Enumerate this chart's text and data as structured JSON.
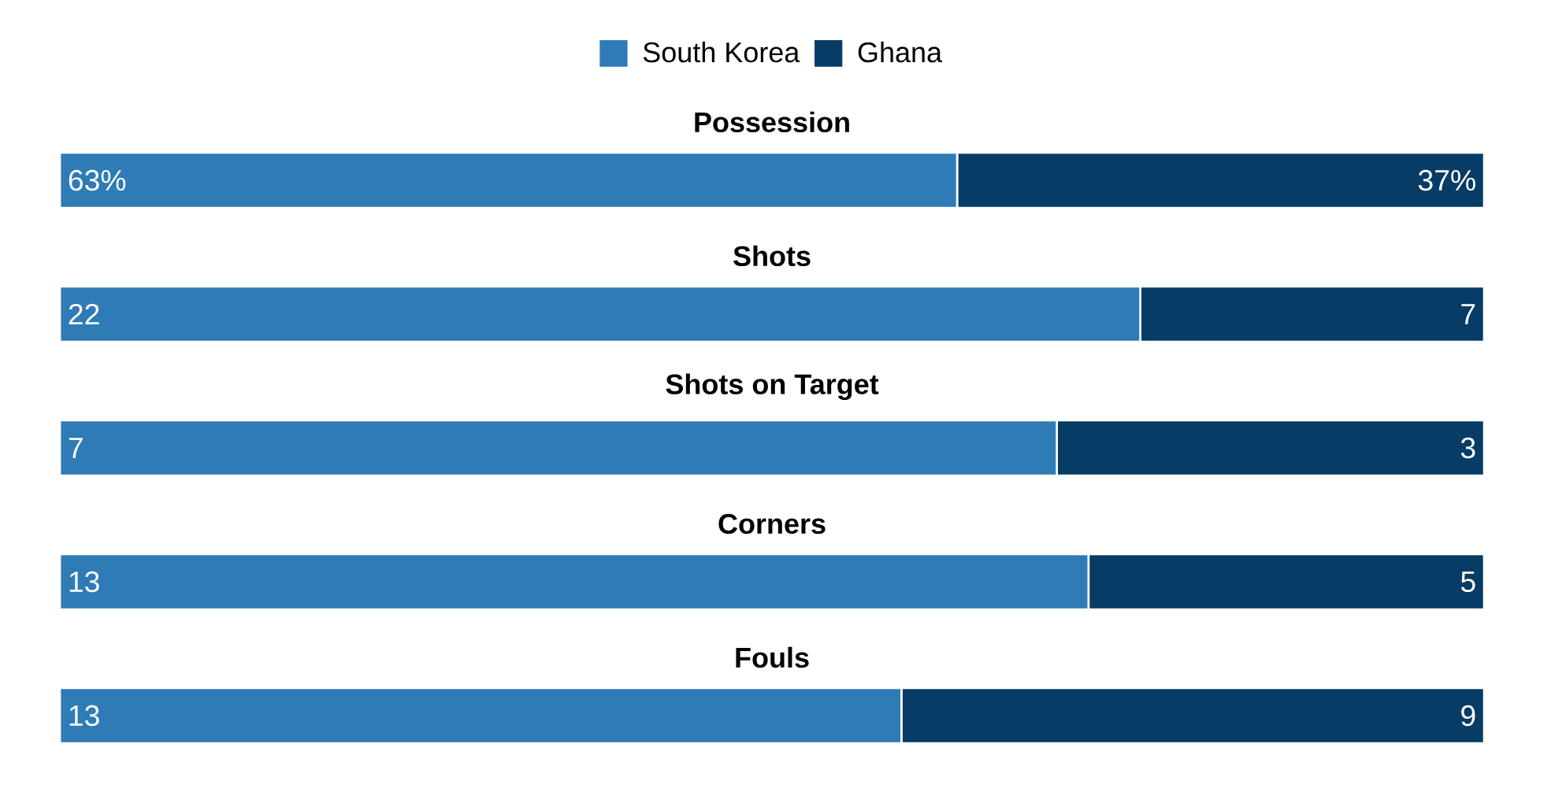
{
  "chart_data": [
    {
      "type": "bar",
      "orientation": "horizontal",
      "stacked": true,
      "title": "Possession",
      "categories": [
        null
      ],
      "tick_labels": false,
      "legend": "top",
      "series": [
        {
          "name": "South Korea",
          "color": "#2e7bb6",
          "values": [
            63
          ],
          "value_labels": [
            "63%"
          ]
        },
        {
          "name": "Ghana",
          "color": "#063c66",
          "values": [
            37
          ],
          "value_labels": [
            "37%"
          ]
        }
      ]
    },
    {
      "type": "bar",
      "orientation": "horizontal",
      "stacked": true,
      "title": "Shots",
      "categories": [
        null
      ],
      "tick_labels": false,
      "data_labels": true,
      "series": [
        {
          "color": "#2e7bb6",
          "values": [
            22
          ]
        },
        {
          "color": "#063c66",
          "values": [
            7
          ]
        }
      ]
    },
    {
      "type": "bar",
      "orientation": "horizontal",
      "stacked": true,
      "title": "Shots on Target",
      "categories": [
        null
      ],
      "tick_labels": false,
      "data_labels": true,
      "series": [
        {
          "color": "#2e7bb6",
          "values": [
            7
          ]
        },
        {
          "color": "#063c66",
          "values": [
            3
          ]
        }
      ]
    },
    {
      "type": "bar",
      "orientation": "horizontal",
      "stacked": true,
      "title": "Corners",
      "categories": [
        null
      ],
      "tick_labels": false,
      "data_labels": true,
      "series": [
        {
          "color": "#2e7bb6",
          "values": [
            13
          ]
        },
        {
          "color": "#063c66",
          "values": [
            5
          ]
        }
      ]
    },
    {
      "type": "bar",
      "orientation": "horizontal",
      "stacked": true,
      "title": "Fouls",
      "categories": [
        null
      ],
      "tick_labels": false,
      "data_labels": true,
      "series": [
        {
          "color": "#2e7bb6",
          "values": [
            13
          ]
        },
        {
          "color": "#063c66",
          "values": [
            9
          ]
        }
      ]
    }
  ]
}
